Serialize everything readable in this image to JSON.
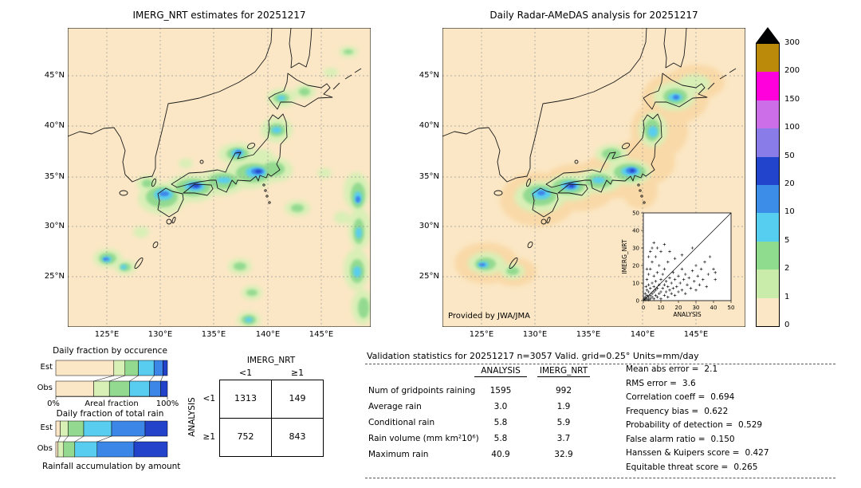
{
  "figure": {
    "left_map": {
      "title": "IMERG_NRT estimates for 20251217",
      "x_ticks": [
        "125°E",
        "130°E",
        "135°E",
        "140°E",
        "145°E"
      ],
      "y_ticks": [
        "45°N",
        "40°N",
        "35°N",
        "30°N",
        "25°N"
      ]
    },
    "right_map": {
      "title": "Daily Radar-AMeDAS analysis for 20251217",
      "provider": "Provided by JWA/JMA",
      "x_ticks": [
        "125°E",
        "130°E",
        "135°E",
        "140°E",
        "145°E"
      ],
      "y_ticks": [
        "45°N",
        "40°N",
        "35°N",
        "30°N",
        "25°N"
      ]
    }
  },
  "colorbar": {
    "unit_labels": [
      "300",
      "200",
      "150",
      "100",
      "50",
      "20",
      "10",
      "5",
      "2",
      "1",
      "0"
    ],
    "segment_colors_top_to_bottom": [
      "#bb8a0b",
      "#ff00dc",
      "#cc6ee8",
      "#8a7ce8",
      "#2244cc",
      "#3b8de8",
      "#55cef0",
      "#8fdc8f",
      "#c9ecaa",
      "#fbe7c5"
    ],
    "overflow_color": "#000000",
    "map_background": "#fbe7c5"
  },
  "chart_data": [
    {
      "type": "scatter",
      "xlabel": "ANALYSIS",
      "ylabel": "IMERG_NRT",
      "xlim": [
        0,
        50
      ],
      "ylim": [
        0,
        50
      ],
      "ticks": [
        0,
        10,
        20,
        30,
        40,
        50
      ],
      "one_to_one_line": true,
      "points": [
        [
          0.5,
          1
        ],
        [
          1,
          0.5
        ],
        [
          1,
          2
        ],
        [
          1,
          4
        ],
        [
          1.5,
          8
        ],
        [
          2,
          1
        ],
        [
          2,
          3
        ],
        [
          2,
          6
        ],
        [
          2,
          12
        ],
        [
          2,
          18
        ],
        [
          3,
          0.5
        ],
        [
          3,
          2
        ],
        [
          3,
          5
        ],
        [
          3,
          9
        ],
        [
          3,
          15
        ],
        [
          3,
          25
        ],
        [
          4,
          1
        ],
        [
          4,
          3
        ],
        [
          4,
          7
        ],
        [
          4,
          18
        ],
        [
          4,
          28
        ],
        [
          5,
          2
        ],
        [
          5,
          4
        ],
        [
          5,
          10
        ],
        [
          5,
          22
        ],
        [
          5,
          30
        ],
        [
          6,
          1
        ],
        [
          6,
          5
        ],
        [
          6,
          8
        ],
        [
          6,
          14
        ],
        [
          6,
          33
        ],
        [
          7,
          3
        ],
        [
          7,
          6
        ],
        [
          7,
          11
        ],
        [
          7,
          25
        ],
        [
          8,
          2
        ],
        [
          8,
          7
        ],
        [
          8,
          16
        ],
        [
          8,
          30
        ],
        [
          9,
          4
        ],
        [
          9,
          9
        ],
        [
          9,
          20
        ],
        [
          10,
          1
        ],
        [
          10,
          5
        ],
        [
          10,
          12
        ],
        [
          10,
          28
        ],
        [
          11,
          7
        ],
        [
          11,
          15
        ],
        [
          12,
          3
        ],
        [
          12,
          9
        ],
        [
          12,
          18
        ],
        [
          12,
          32
        ],
        [
          13,
          5
        ],
        [
          13,
          11
        ],
        [
          14,
          2
        ],
        [
          14,
          8
        ],
        [
          14,
          22
        ],
        [
          15,
          6
        ],
        [
          15,
          13
        ],
        [
          15,
          28
        ],
        [
          16,
          4
        ],
        [
          16,
          10
        ],
        [
          17,
          7
        ],
        [
          17,
          16
        ],
        [
          18,
          3
        ],
        [
          18,
          12
        ],
        [
          18,
          24
        ],
        [
          19,
          8
        ],
        [
          20,
          5
        ],
        [
          20,
          14
        ],
        [
          21,
          10
        ],
        [
          22,
          6
        ],
        [
          22,
          18
        ],
        [
          22,
          26
        ],
        [
          23,
          12
        ],
        [
          24,
          4
        ],
        [
          24,
          15
        ],
        [
          25,
          9
        ],
        [
          26,
          13
        ],
        [
          27,
          7
        ],
        [
          28,
          17
        ],
        [
          28,
          30
        ],
        [
          29,
          11
        ],
        [
          30,
          6
        ],
        [
          30,
          20
        ],
        [
          31,
          14
        ],
        [
          32,
          9
        ],
        [
          33,
          18
        ],
        [
          34,
          12
        ],
        [
          35,
          22
        ],
        [
          36,
          8
        ],
        [
          37,
          15
        ],
        [
          38,
          25
        ],
        [
          40,
          18
        ],
        [
          41,
          12
        ],
        [
          41,
          16
        ]
      ]
    },
    {
      "type": "bar",
      "title": "Daily fraction by occurence",
      "orientation": "horizontal-stacked",
      "categories": [
        "Est",
        "Obs"
      ],
      "xlabel": "Areal fraction",
      "x_tick_labels": [
        "0%",
        "100%"
      ],
      "segment_colors": [
        "#fbe7c5",
        "#d8efb6",
        "#93da90",
        "#58cdef",
        "#3c86e8",
        "#2343cb"
      ],
      "series_percent": {
        "Est": [
          52,
          10,
          12,
          14,
          8,
          4
        ],
        "Obs": [
          34,
          14,
          18,
          18,
          10,
          6
        ]
      }
    },
    {
      "type": "bar",
      "title": "Daily fraction of total rain",
      "orientation": "horizontal-stacked",
      "categories": [
        "Est",
        "Obs"
      ],
      "xlabel": "Rainfall accumulation by amount",
      "segment_colors": [
        "#fbe7c5",
        "#d8efb6",
        "#93da90",
        "#58cdef",
        "#3c86e8",
        "#2343cb"
      ],
      "series_percent": {
        "Est": [
          4,
          7,
          14,
          25,
          30,
          20
        ],
        "Obs": [
          2,
          5,
          10,
          20,
          33,
          30
        ]
      }
    },
    {
      "type": "table",
      "name": "contingency",
      "col_group": "IMERG_NRT",
      "row_group": "ANALYSIS",
      "col_labels": [
        "<1",
        "≥1"
      ],
      "row_labels": [
        "<1",
        "≥1"
      ],
      "values": [
        [
          1313,
          149
        ],
        [
          752,
          843
        ]
      ]
    },
    {
      "type": "table",
      "name": "validation-statistics",
      "title": "Validation statistics for 20251217  n=3057 Valid. grid=0.25° Units=mm/day",
      "columns": [
        "ANALYSIS",
        "IMERG_NRT"
      ],
      "rows": [
        {
          "label": "Num of gridpoints raining",
          "analysis": "1595",
          "imerg_nrt": "992"
        },
        {
          "label": "Average rain",
          "analysis": "3.0",
          "imerg_nrt": "1.9"
        },
        {
          "label": "Conditional rain",
          "analysis": "5.8",
          "imerg_nrt": "5.9"
        },
        {
          "label": "Rain volume (mm km²10⁶)",
          "analysis": "5.8",
          "imerg_nrt": "3.7"
        },
        {
          "label": "Maximum rain",
          "analysis": "40.9",
          "imerg_nrt": "32.9"
        }
      ],
      "side_stats": [
        {
          "label": "Mean abs error =",
          "value": "2.1"
        },
        {
          "label": "RMS error =",
          "value": "3.6"
        },
        {
          "label": "Correlation coeff =",
          "value": "0.694"
        },
        {
          "label": "Frequency bias =",
          "value": "0.622"
        },
        {
          "label": "Probability of detection =",
          "value": "0.529"
        },
        {
          "label": "False alarm ratio =",
          "value": "0.150"
        },
        {
          "label": "Hanssen & Kuipers score =",
          "value": "0.427"
        },
        {
          "label": "Equitable threat score =",
          "value": "0.265"
        }
      ]
    }
  ]
}
